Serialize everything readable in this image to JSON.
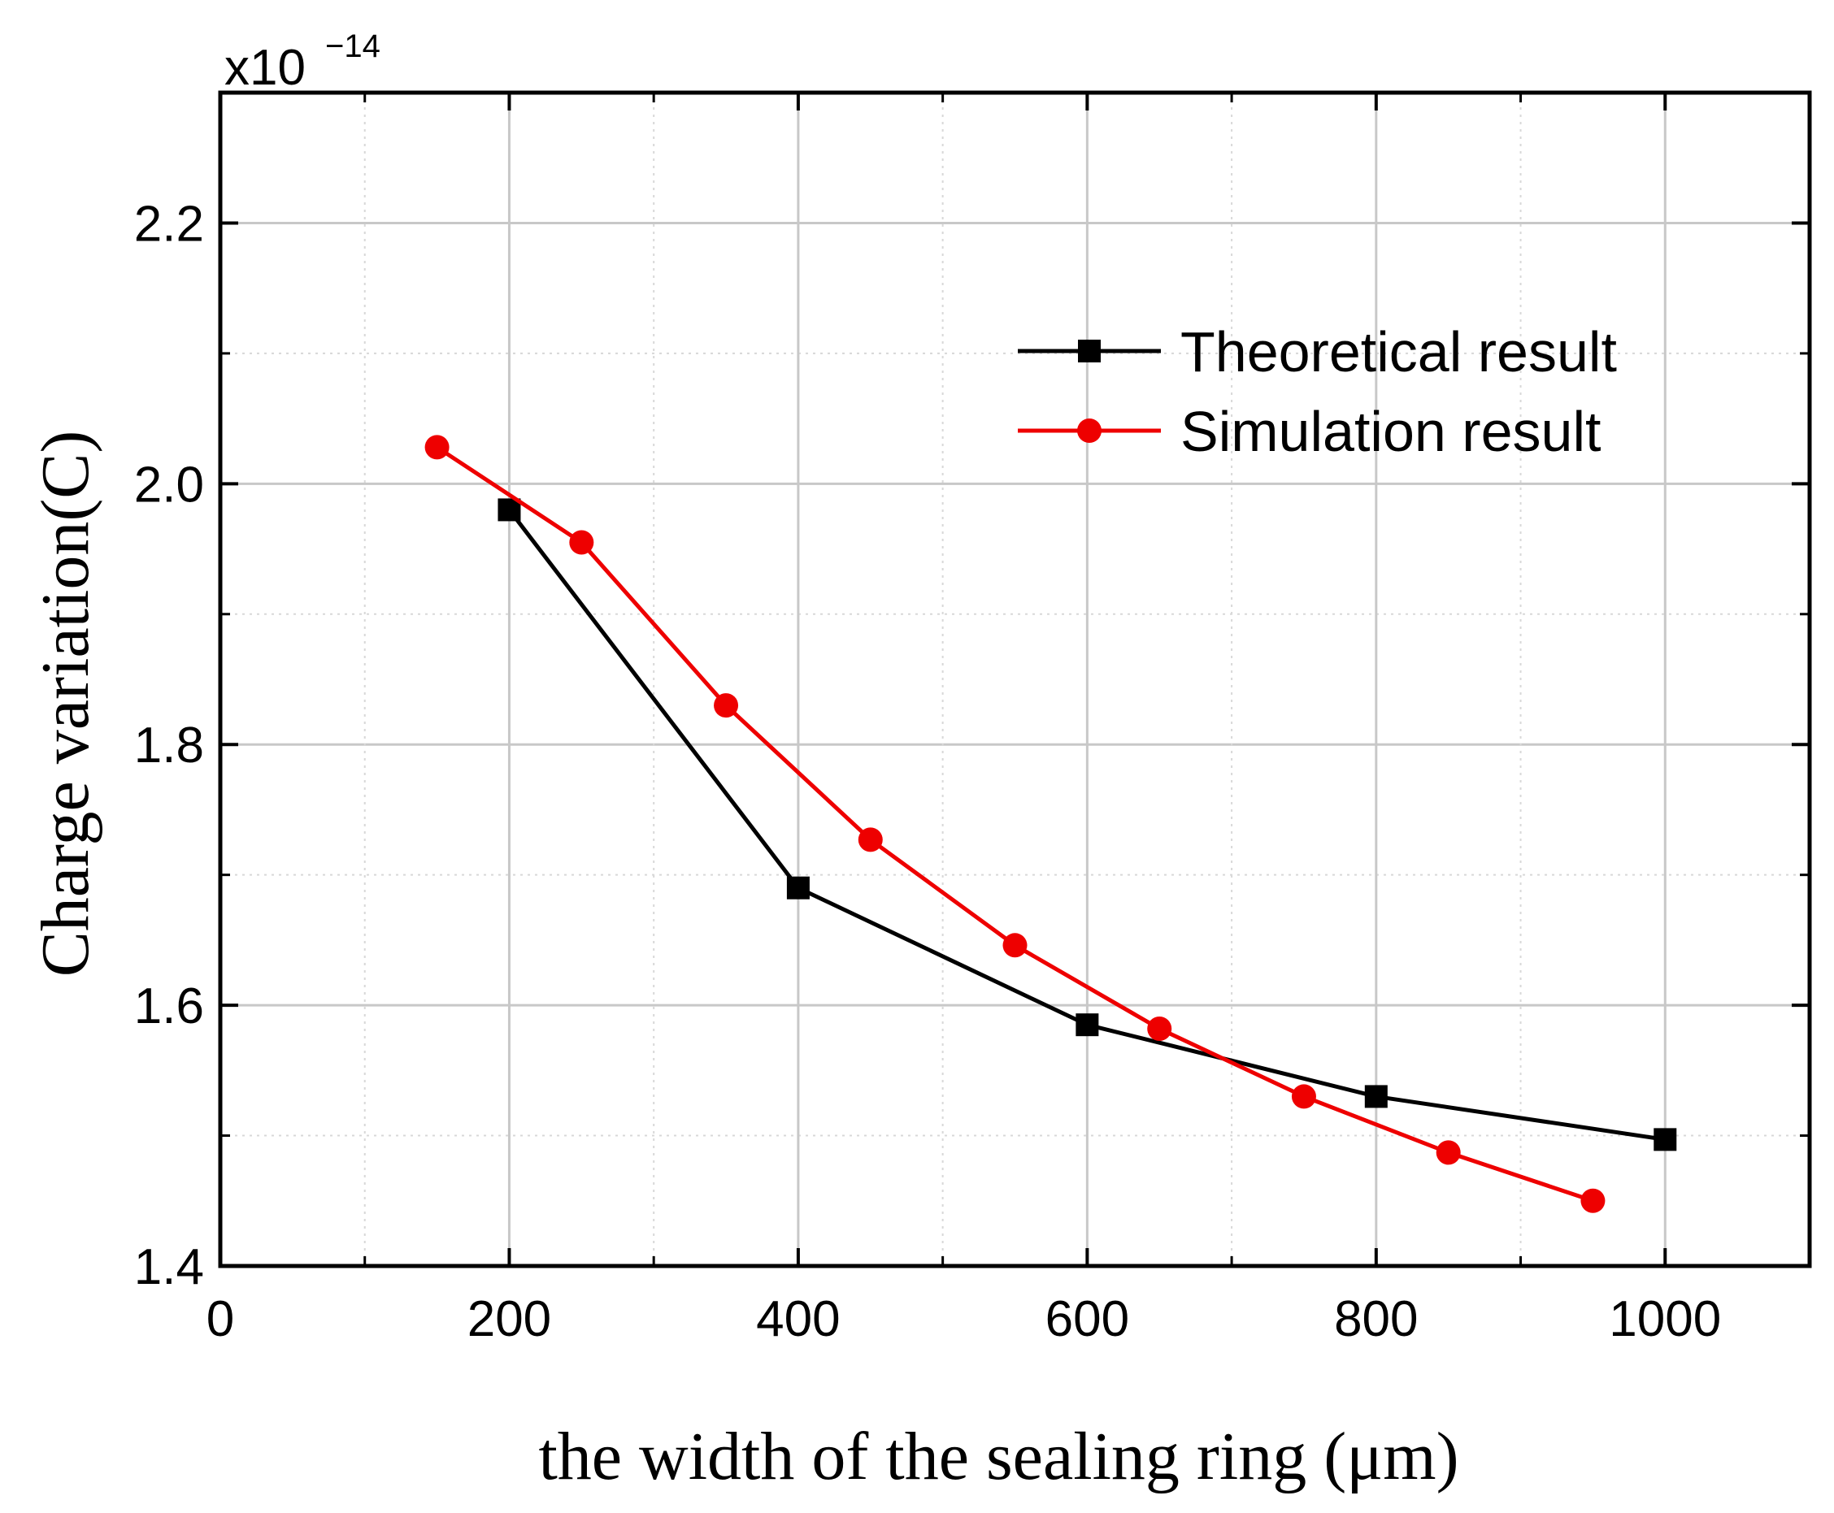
{
  "chart_data": {
    "type": "line",
    "title": "",
    "xlabel": "the width of the sealing ring (μm)",
    "ylabel": "Charge variation(C)",
    "y_multiplier": {
      "base": "x10",
      "exponent": "−14"
    },
    "xlim": [
      0,
      1100
    ],
    "ylim": [
      1.4,
      2.3
    ],
    "x_ticks": [
      0,
      200,
      400,
      600,
      800,
      1000
    ],
    "x_tick_labels": [
      "0",
      "200",
      "400",
      "600",
      "800",
      "1000"
    ],
    "y_ticks": [
      1.4,
      1.6,
      1.8,
      2.0,
      2.2
    ],
    "y_tick_labels": [
      "1.4",
      "1.6",
      "1.8",
      "2.0",
      "2.2"
    ],
    "grid": true,
    "legend_position": "top-right",
    "series": [
      {
        "name": "Theoretical result",
        "color": "#000000",
        "marker": "square",
        "x": [
          200,
          400,
          600,
          800,
          1000
        ],
        "values": [
          1.98,
          1.69,
          1.585,
          1.53,
          1.497
        ]
      },
      {
        "name": "Simulation result",
        "color": "#ee0000",
        "marker": "circle",
        "x": [
          150,
          250,
          350,
          450,
          550,
          650,
          750,
          850,
          950
        ],
        "values": [
          2.028,
          1.955,
          1.83,
          1.727,
          1.646,
          1.582,
          1.53,
          1.487,
          1.45
        ]
      }
    ]
  }
}
